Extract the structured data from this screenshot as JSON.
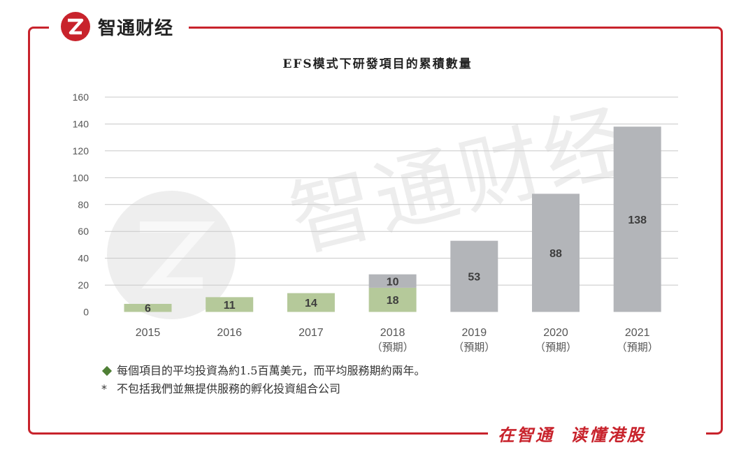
{
  "brand": {
    "name": "智通财经",
    "logo_icon": "zhitong-logo-icon"
  },
  "slogan": "在智通  读懂港股",
  "watermark": {
    "text": "智通财经"
  },
  "colors": {
    "accent": "#c8232c",
    "green_bar": "#b5c99a",
    "gray_bar": "#b3b5b9",
    "diamond": "#4f7f35"
  },
  "chart_data": {
    "type": "bar",
    "title": "EFS模式下研發項目的累積數量",
    "categories": [
      "2015",
      "2016",
      "2017",
      "2018",
      "2019",
      "2020",
      "2021"
    ],
    "category_sublabels": [
      "",
      "",
      "",
      "（預期）",
      "（預期）",
      "（預期）",
      "（預期）"
    ],
    "series": [
      {
        "color": "#b5c99a",
        "values": [
          6,
          11,
          14,
          18,
          0,
          0,
          0
        ]
      },
      {
        "color": "#b3b5b9",
        "values": [
          0,
          0,
          0,
          10,
          53,
          88,
          138
        ]
      }
    ],
    "data_labels": [
      [
        "6"
      ],
      [
        "11"
      ],
      [
        "14"
      ],
      [
        "18",
        "10"
      ],
      [
        "53"
      ],
      [
        "88"
      ],
      [
        "138"
      ]
    ],
    "ylim": [
      0,
      160
    ],
    "yticks": [
      0,
      20,
      40,
      60,
      80,
      100,
      120,
      140,
      160
    ],
    "grid": true,
    "xlabel": "",
    "ylabel": ""
  },
  "notes": {
    "note1": "每個項目的平均投資為約1.5百萬美元，而平均服務期約兩年。",
    "note2_marker": "*",
    "note2": "不包括我們並無提供服務的孵化投資組合公司"
  }
}
